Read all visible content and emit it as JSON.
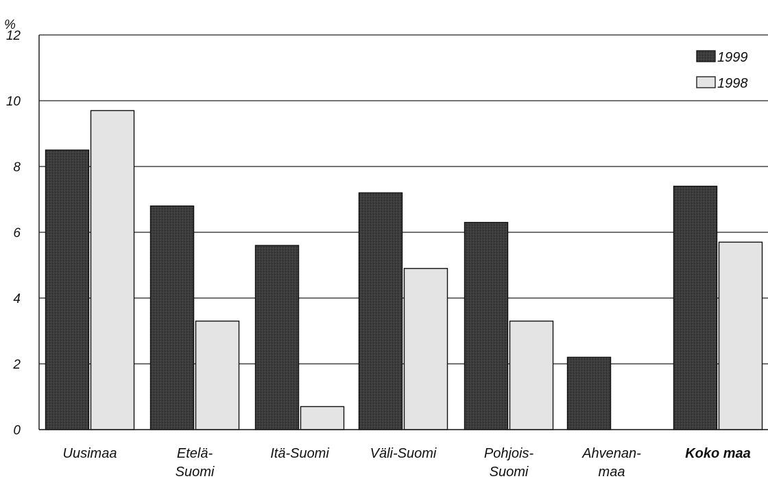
{
  "chart_data": {
    "type": "bar",
    "ylabel": "%",
    "ylim": [
      0,
      12
    ],
    "yticks": [
      "0",
      "2",
      "4",
      "6",
      "8",
      "10",
      "12"
    ],
    "grid": true,
    "legend_position": "top-right",
    "categories": [
      [
        "Uusimaa"
      ],
      [
        "Etelä-",
        "Suomi"
      ],
      [
        "Itä-Suomi"
      ],
      [
        "Väli-Suomi"
      ],
      [
        "Pohjois-",
        "Suomi"
      ],
      [
        "Ahvenan-",
        "maa"
      ],
      [
        "Koko maa"
      ]
    ],
    "bold_categories": [
      6
    ],
    "series": [
      {
        "name": "1999",
        "color": "#3a3a3a",
        "values": [
          8.5,
          6.8,
          5.6,
          7.2,
          6.3,
          2.2,
          7.4
        ]
      },
      {
        "name": "1998",
        "color": "#e4e4e4",
        "values": [
          9.7,
          3.3,
          0.7,
          4.9,
          3.3,
          null,
          5.7
        ]
      }
    ]
  }
}
